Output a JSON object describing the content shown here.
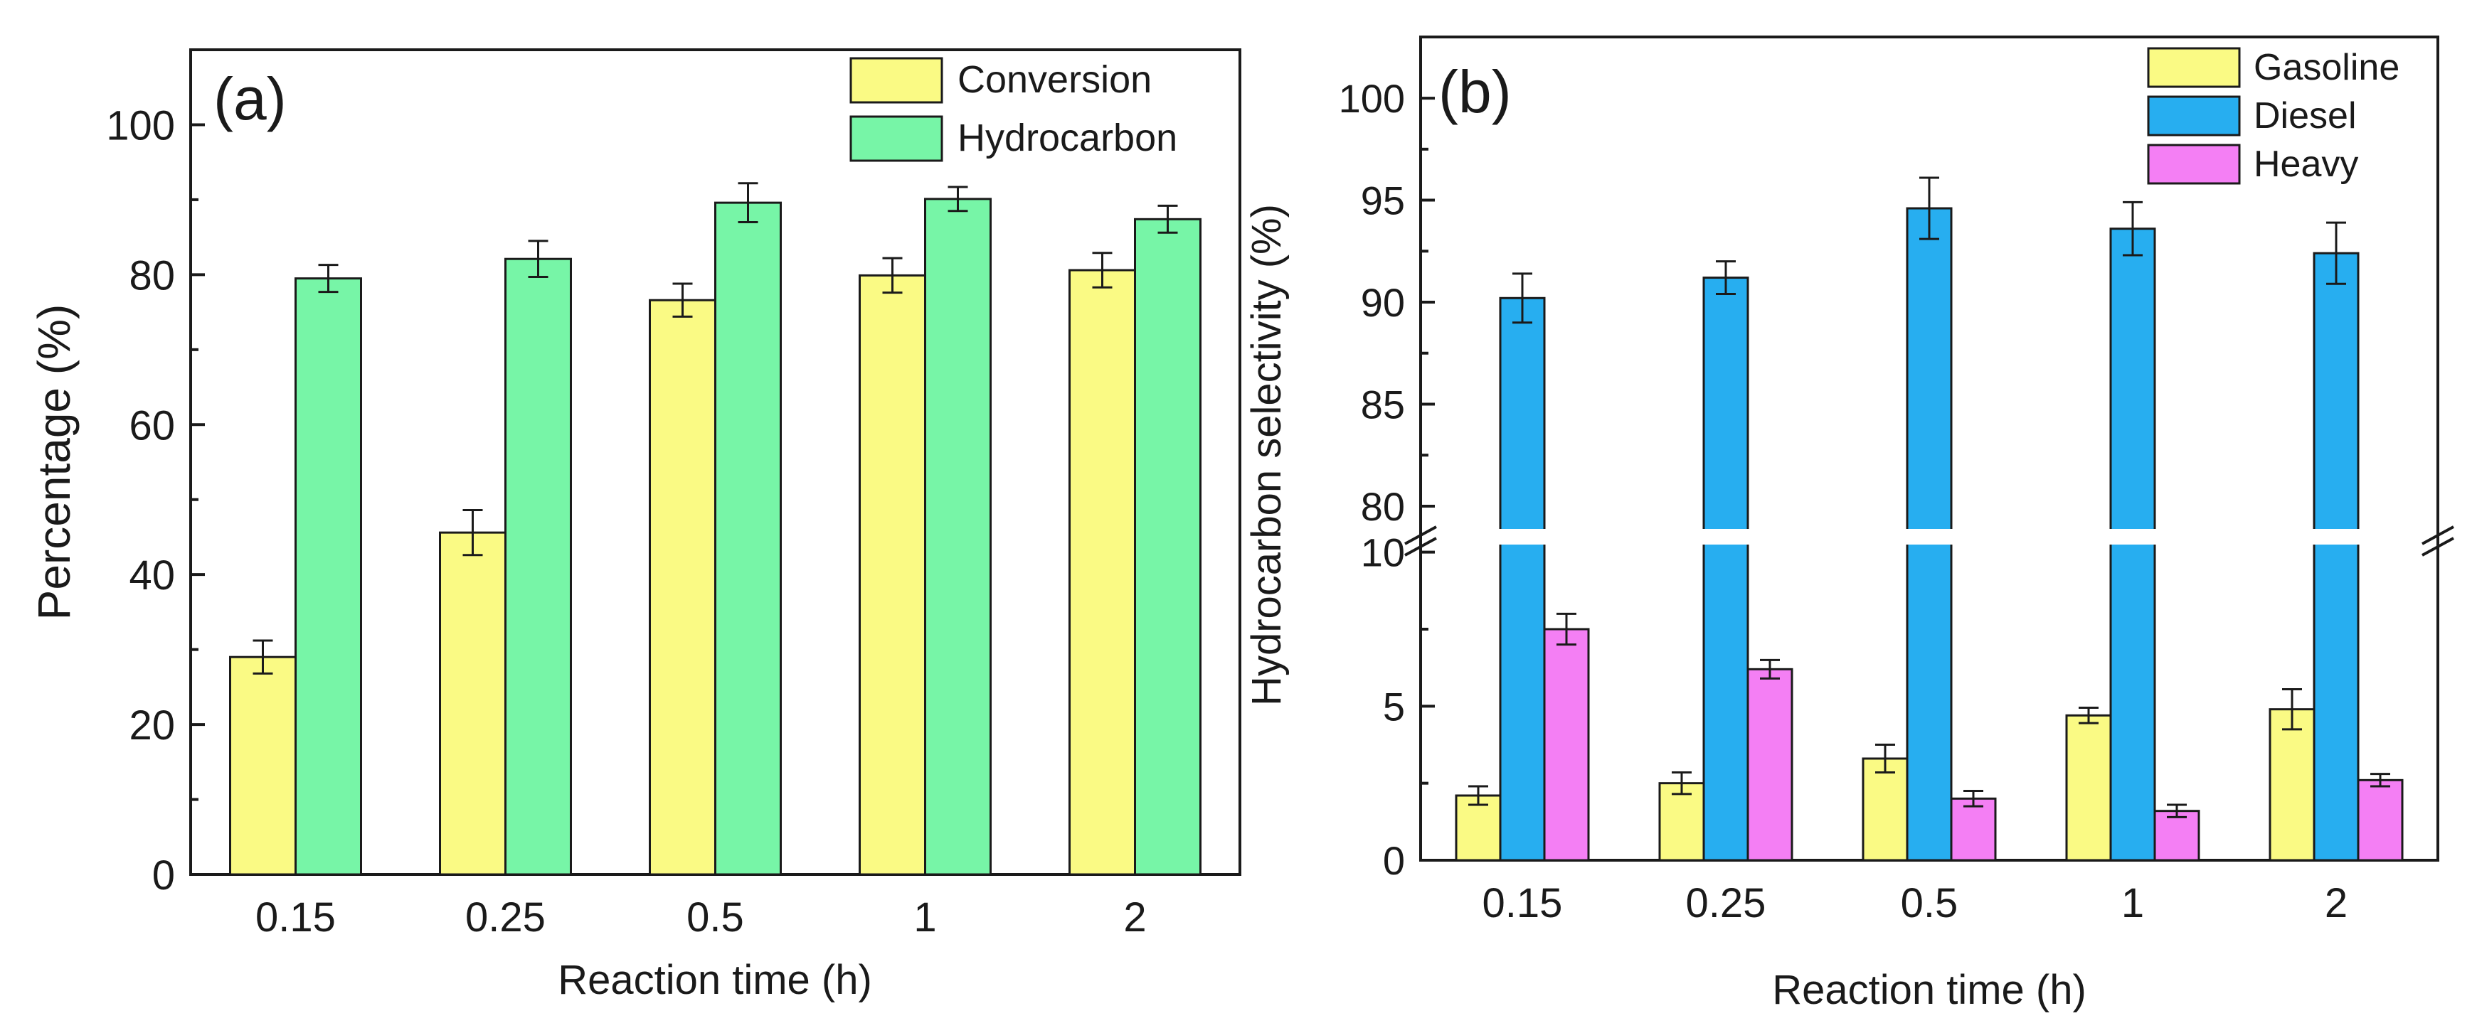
{
  "chart_data": [
    {
      "type": "bar",
      "panel_label": "(a)",
      "xlabel": "Reaction time (h)",
      "ylabel": "Percentage (%)",
      "categories": [
        "0.15",
        "0.25",
        "0.5",
        "1",
        "2"
      ],
      "ylim": [
        0,
        110
      ],
      "yticks": [
        0,
        20,
        40,
        60,
        80,
        100
      ],
      "yticklabels": [
        "0",
        "20",
        "40",
        "60",
        "80",
        "100"
      ],
      "legend_position": "top-right",
      "grid": false,
      "series": [
        {
          "name": "Conversion",
          "color": "#fafa84",
          "values": [
            29.0,
            45.6,
            76.6,
            79.9,
            80.6
          ],
          "errors": [
            2.2,
            3.0,
            2.2,
            2.3,
            2.3
          ]
        },
        {
          "name": "Hydrocarbon",
          "color": "#77f5a7",
          "values": [
            79.5,
            82.1,
            89.6,
            90.1,
            87.4
          ],
          "errors": [
            1.8,
            2.4,
            2.6,
            1.6,
            1.8
          ]
        }
      ]
    },
    {
      "type": "bar",
      "panel_label": "(b)",
      "xlabel": "Reaction time (h)",
      "ylabel": "Hydrocarbon selectivity (%)",
      "categories": [
        "0.15",
        "0.25",
        "0.5",
        "1",
        "2"
      ],
      "axis_break": true,
      "lower_ylim": [
        0,
        10.5
      ],
      "upper_ylim": [
        78.5,
        103
      ],
      "lower_yticks": [
        0,
        5,
        10
      ],
      "lower_yticklabels": [
        "0",
        "5",
        "10"
      ],
      "upper_yticks": [
        80,
        85,
        90,
        95,
        100
      ],
      "upper_yticklabels": [
        "80",
        "85",
        "90",
        "95",
        "100"
      ],
      "legend_position": "top-right",
      "grid": false,
      "series": [
        {
          "name": "Gasoline",
          "color": "#fafa84",
          "values": [
            2.1,
            2.5,
            3.3,
            4.7,
            4.9
          ],
          "errors": [
            0.3,
            0.35,
            0.45,
            0.25,
            0.65
          ]
        },
        {
          "name": "Diesel",
          "color": "#27aef0",
          "values": [
            90.2,
            91.2,
            94.6,
            93.6,
            92.4
          ],
          "errors": [
            1.2,
            0.8,
            1.5,
            1.3,
            1.5
          ]
        },
        {
          "name": "Heavy",
          "color": "#f47ff4",
          "values": [
            7.5,
            6.2,
            2.0,
            1.6,
            2.6
          ],
          "errors": [
            0.5,
            0.3,
            0.25,
            0.2,
            0.2
          ]
        }
      ]
    }
  ]
}
